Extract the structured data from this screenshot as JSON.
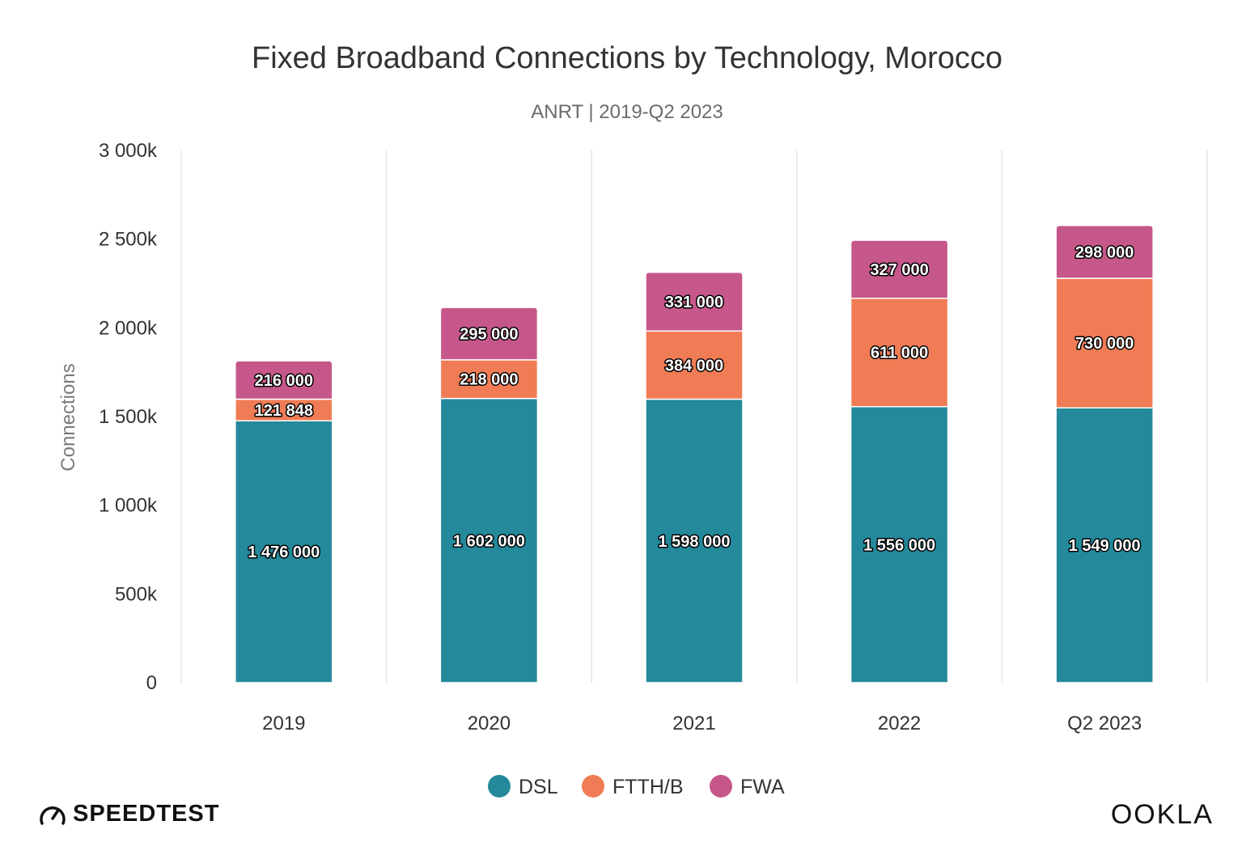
{
  "colors": {
    "DSL": "#24899b",
    "FTTH/B": "#f07c55",
    "FWA": "#c6578a",
    "grid": "#e3e3e3"
  },
  "chart_data": {
    "type": "bar",
    "stacked": true,
    "title": "Fixed Broadband Connections by Technology, Morocco",
    "subtitle": "ANRT | 2019-Q2 2023",
    "xlabel": "",
    "ylabel": "Connections",
    "ylim": [
      0,
      3000000
    ],
    "yticks": [
      {
        "value": 0,
        "label": "0"
      },
      {
        "value": 500000,
        "label": "500k"
      },
      {
        "value": 1000000,
        "label": "1 000k"
      },
      {
        "value": 1500000,
        "label": "1 500k"
      },
      {
        "value": 2000000,
        "label": "2 000k"
      },
      {
        "value": 2500000,
        "label": "2 500k"
      },
      {
        "value": 3000000,
        "label": "3 000k"
      }
    ],
    "categories": [
      "2019",
      "2020",
      "2021",
      "2022",
      "Q2 2023"
    ],
    "series": [
      {
        "name": "DSL",
        "values": [
          1476000,
          1602000,
          1598000,
          1556000,
          1549000
        ],
        "labels": [
          "1 476 000",
          "1 602 000",
          "1 598 000",
          "1 556 000",
          "1 549 000"
        ]
      },
      {
        "name": "FTTH/B",
        "values": [
          121848,
          218000,
          384000,
          611000,
          730000
        ],
        "labels": [
          "121 848",
          "218 000",
          "384 000",
          "611 000",
          "730 000"
        ]
      },
      {
        "name": "FWA",
        "values": [
          216000,
          295000,
          331000,
          327000,
          298000
        ],
        "labels": [
          "216 000",
          "295 000",
          "331 000",
          "327 000",
          "298 000"
        ]
      }
    ],
    "grid": "vertical",
    "legend_position": "bottom"
  },
  "branding": {
    "left": "SPEEDTEST",
    "right": "OOKLA"
  }
}
